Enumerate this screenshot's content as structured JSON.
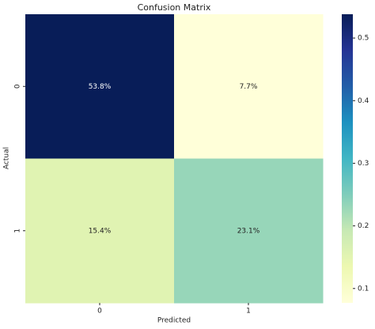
{
  "chart_data": {
    "type": "heatmap",
    "title": "Confusion Matrix",
    "x_label": "Predicted",
    "y_label": "Actual",
    "x_categories": [
      "0",
      "1"
    ],
    "y_categories": [
      "0",
      "1"
    ],
    "values": [
      [
        0.538,
        0.077
      ],
      [
        0.154,
        0.231
      ]
    ],
    "value_labels": [
      [
        "53.8%",
        "7.7%"
      ],
      [
        "15.4%",
        "23.1%"
      ]
    ],
    "colormap": "YlGnBu",
    "clim": [
      0.077,
      0.538
    ],
    "cticks": [
      0.1,
      0.2,
      0.3,
      0.4,
      0.5
    ]
  }
}
